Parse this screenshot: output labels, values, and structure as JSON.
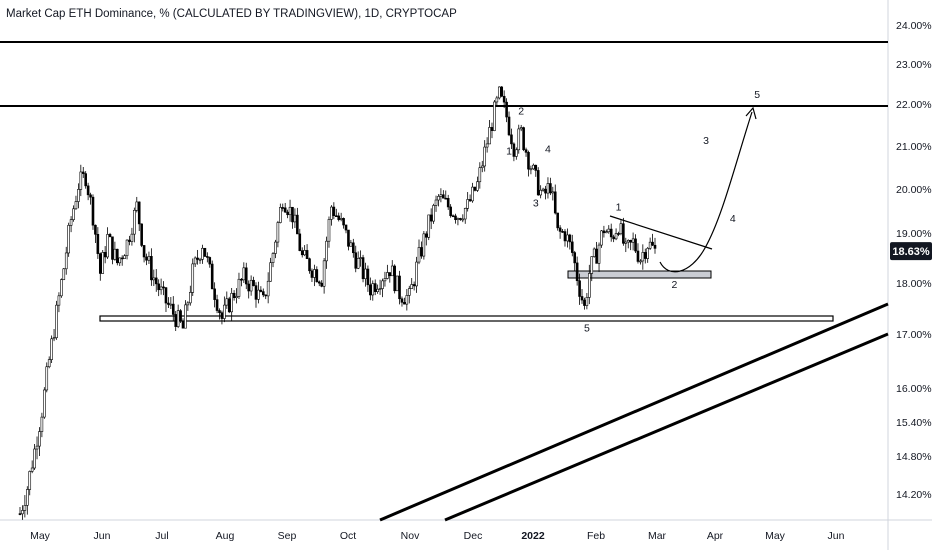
{
  "title": "Market Cap ETH Dominance, % (CALCULATED BY TRADINGVIEW), 1D, CRYPTOCAP",
  "current_price": "18.63%",
  "chart_data": {
    "type": "candlestick",
    "y_axis": {
      "scale": "log",
      "ticks": [
        "24.00%",
        "23.00%",
        "22.00%",
        "21.00%",
        "20.00%",
        "19.00%",
        "18.00%",
        "17.00%",
        "16.00%",
        "15.40%",
        "14.80%",
        "14.20%"
      ],
      "tick_values": [
        24.0,
        23.0,
        22.0,
        21.0,
        20.0,
        19.0,
        18.0,
        17.0,
        16.0,
        15.4,
        14.8,
        14.2
      ],
      "range": [
        13.9,
        24.4
      ]
    },
    "x_axis": {
      "ticks": [
        "May",
        "Jun",
        "Jul",
        "Aug",
        "Sep",
        "Oct",
        "Nov",
        "Dec",
        "2022",
        "Feb",
        "Mar",
        "Apr",
        "May",
        "Jun"
      ],
      "bold_ticks": [
        "2022"
      ]
    },
    "price_path": [
      [
        0,
        13.9
      ],
      [
        3,
        14.3
      ],
      [
        6,
        14.9
      ],
      [
        9,
        15.6
      ],
      [
        12,
        16.5
      ],
      [
        15,
        17.4
      ],
      [
        18,
        18.3
      ],
      [
        21,
        19.3
      ],
      [
        24,
        20.1
      ],
      [
        27,
        20.3
      ],
      [
        30,
        19.4
      ],
      [
        33,
        18.2
      ],
      [
        36,
        18.9
      ],
      [
        40,
        18.4
      ],
      [
        44,
        18.8
      ],
      [
        48,
        19.6
      ],
      [
        51,
        18.6
      ],
      [
        55,
        18.1
      ],
      [
        59,
        17.7
      ],
      [
        63,
        17.4
      ],
      [
        67,
        17.1
      ],
      [
        71,
        18.2
      ],
      [
        75,
        18.8
      ],
      [
        79,
        18.0
      ],
      [
        83,
        17.3
      ],
      [
        88,
        17.8
      ],
      [
        92,
        18.1
      ],
      [
        96,
        17.9
      ],
      [
        100,
        17.6
      ],
      [
        104,
        18.6
      ],
      [
        108,
        19.8
      ],
      [
        112,
        19.4
      ],
      [
        116,
        18.5
      ],
      [
        120,
        18.3
      ],
      [
        124,
        18.1
      ],
      [
        128,
        19.6
      ],
      [
        132,
        19.2
      ],
      [
        136,
        18.7
      ],
      [
        140,
        18.3
      ],
      [
        144,
        17.9
      ],
      [
        148,
        18.1
      ],
      [
        152,
        18.3
      ],
      [
        156,
        17.8
      ],
      [
        160,
        17.7
      ],
      [
        164,
        18.5
      ],
      [
        168,
        19.2
      ],
      [
        172,
        19.8
      ],
      [
        176,
        19.6
      ],
      [
        180,
        19.4
      ],
      [
        184,
        19.6
      ],
      [
        188,
        20.1
      ],
      [
        192,
        21.1
      ],
      [
        195,
        21.8
      ],
      [
        197,
        22.2
      ],
      [
        200,
        21.7
      ],
      [
        203,
        21.0
      ],
      [
        206,
        21.3
      ],
      [
        209,
        20.7
      ],
      [
        212,
        20.2
      ],
      [
        215,
        19.8
      ],
      [
        218,
        20.1
      ],
      [
        221,
        19.0
      ],
      [
        224,
        19.0
      ],
      [
        227,
        18.6
      ],
      [
        230,
        17.9
      ],
      [
        232,
        17.5
      ],
      [
        234,
        18.2
      ],
      [
        237,
        18.6
      ],
      [
        240,
        19.1
      ],
      [
        243,
        18.9
      ],
      [
        246,
        19.2
      ],
      [
        249,
        18.6
      ],
      [
        252,
        18.8
      ],
      [
        255,
        18.5
      ],
      [
        258,
        18.8
      ],
      [
        261,
        18.63
      ]
    ],
    "annotations": {
      "wave_labels": [
        {
          "text": "2",
          "x": 206,
          "y": 21.75
        },
        {
          "text": "1",
          "x": 201,
          "y": 20.8
        },
        {
          "text": "4",
          "x": 217,
          "y": 20.85
        },
        {
          "text": "3",
          "x": 212,
          "y": 19.6
        },
        {
          "text": "1",
          "x": 246,
          "y": 19.5
        },
        {
          "text": "5",
          "x": 233,
          "y": 17.05
        },
        {
          "text": "2",
          "x": 269,
          "y": 17.9
        },
        {
          "text": "3",
          "x": 282,
          "y": 21.05
        },
        {
          "text": "4",
          "x": 293,
          "y": 19.25
        },
        {
          "text": "5",
          "x": 303,
          "y": 22.15
        }
      ]
    }
  }
}
